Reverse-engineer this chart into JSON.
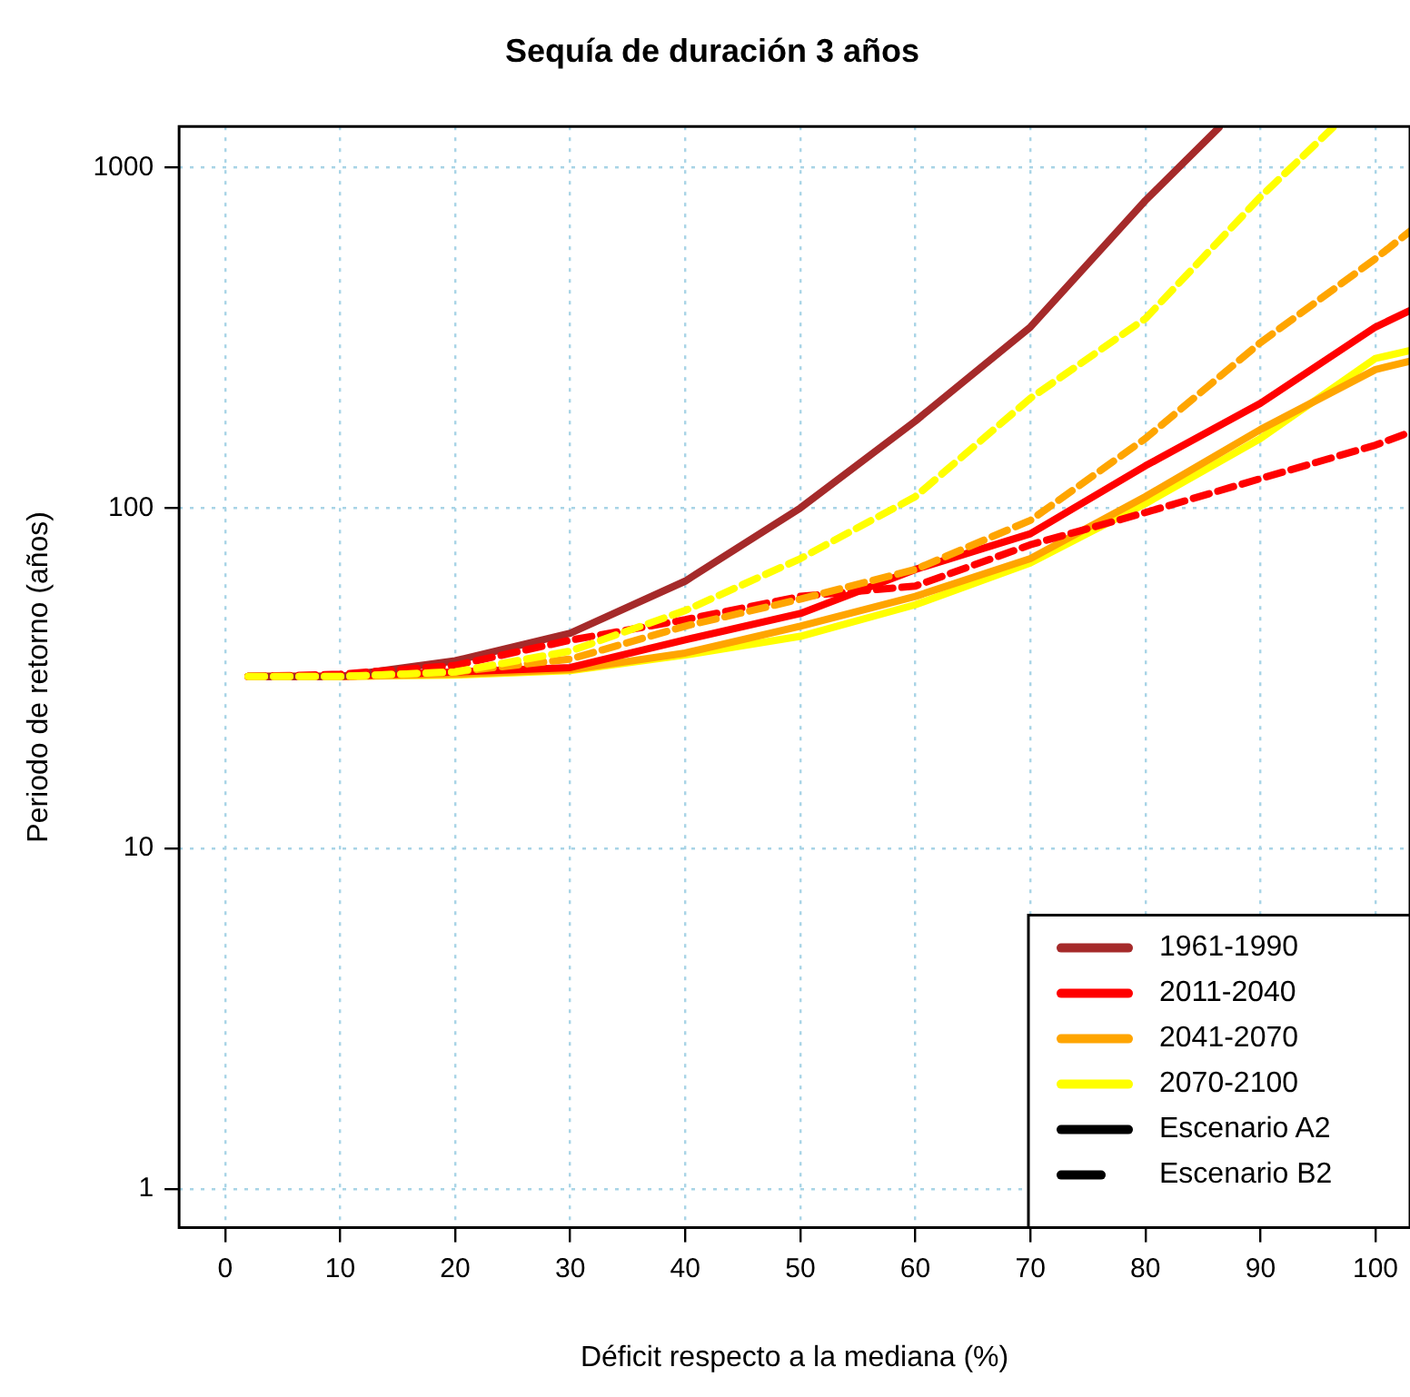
{
  "chart_data": {
    "type": "line",
    "title": "Sequía de duración 3 años",
    "xlabel": "Déficit respecto a la mediana (%)",
    "ylabel": "Periodo de retorno (años)",
    "log": "y",
    "grid": true,
    "legend": "bottom right",
    "xlim": [
      -4,
      103
    ],
    "ylim": [
      0.77,
      1320
    ],
    "xticks": [
      0,
      10,
      20,
      30,
      40,
      50,
      60,
      70,
      80,
      90,
      100
    ],
    "yticks": [
      1,
      10,
      100,
      1000
    ],
    "series": [
      {
        "name": "1961-1990",
        "color": "#a52a2a",
        "line_style": "solid",
        "x": [
          2,
          10,
          20,
          30,
          40,
          50,
          60,
          70,
          80,
          86.4
        ],
        "values": [
          32,
          32,
          35.6,
          42.9,
          61,
          100,
          180,
          340,
          800,
          1310
        ]
      },
      {
        "name": "2011-2040",
        "color": "#ff0000",
        "line_style": "solid",
        "x": [
          2,
          10,
          20,
          30,
          40,
          50,
          60,
          70,
          80,
          90,
          100,
          103
        ],
        "values": [
          32,
          32,
          33,
          34,
          41,
          49,
          66,
          84,
          133,
          203,
          340,
          380
        ]
      },
      {
        "name": "2041-2070",
        "color": "#ffa500",
        "line_style": "solid",
        "x": [
          2,
          10,
          20,
          30,
          40,
          50,
          60,
          70,
          80,
          90,
          100,
          103
        ],
        "values": [
          32,
          32,
          32.5,
          33.5,
          37.5,
          45,
          55,
          71,
          108,
          170,
          255,
          270
        ]
      },
      {
        "name": "2070-2100",
        "color": "#ffff00",
        "line_style": "solid",
        "x": [
          2,
          10,
          20,
          30,
          40,
          50,
          60,
          70,
          80,
          90,
          100,
          103
        ],
        "values": [
          32,
          32,
          32.3,
          33.3,
          37,
          42,
          52,
          69,
          103,
          160,
          275,
          290
        ]
      },
      {
        "color": "#ff0000",
        "line_style": "dashed",
        "x": [
          2,
          10,
          20,
          30,
          40,
          50,
          60,
          70,
          80,
          90,
          100,
          103
        ],
        "values": [
          32,
          32.5,
          34.5,
          40.9,
          47,
          55,
          59,
          78,
          97,
          122,
          153,
          167
        ]
      },
      {
        "color": "#ffa500",
        "line_style": "dashed",
        "x": [
          2,
          10,
          20,
          30,
          40,
          50,
          60,
          70,
          80,
          90,
          100,
          103
        ],
        "values": [
          32,
          32,
          33,
          36,
          45,
          54,
          66,
          92,
          160,
          306,
          540,
          650
        ]
      },
      {
        "color": "#ffff00",
        "line_style": "dashed",
        "x": [
          2,
          10,
          20,
          30,
          40,
          50,
          60,
          70,
          80,
          90,
          96.3
        ],
        "values": [
          32,
          32,
          33,
          38,
          50,
          71,
          108,
          210,
          360,
          820,
          1310
        ]
      },
      {
        "name": "Escenario A2",
        "color": "#000000",
        "line_style": "solid"
      },
      {
        "name": "Escenario B2",
        "color": "#000000",
        "line_style": "dashed"
      }
    ]
  }
}
